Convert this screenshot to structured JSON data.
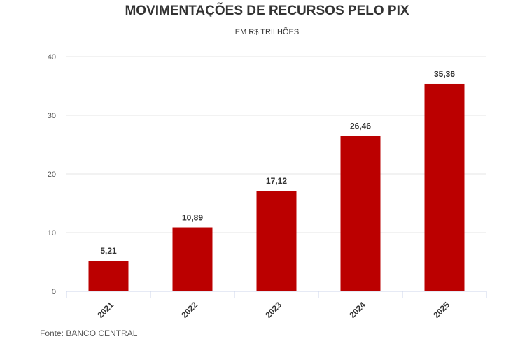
{
  "chart_data": {
    "type": "bar",
    "title": "MOVIMENTAÇÕES DE RECURSOS PELO PIX",
    "subtitle": "EM R$ TRILHÕES",
    "source": "Fonte: BANCO CENTRAL",
    "categories": [
      "2021",
      "2022",
      "2023",
      "2024",
      "2025"
    ],
    "values": [
      5.21,
      10.89,
      17.12,
      26.46,
      35.36
    ],
    "data_labels": [
      "5,21",
      "10,89",
      "17,12",
      "26,46",
      "35,36"
    ],
    "yticks": [
      0,
      10,
      20,
      30,
      40
    ],
    "ylim": [
      0,
      40
    ],
    "grid": true,
    "bar_color": "#bb0000"
  }
}
